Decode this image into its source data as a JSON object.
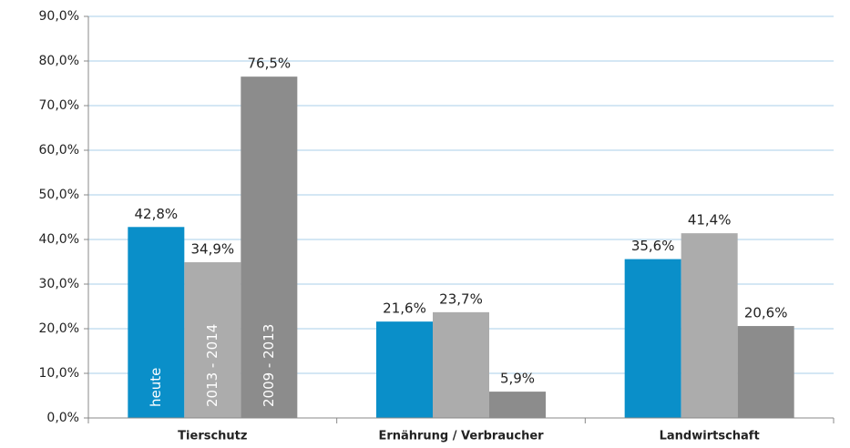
{
  "chart_data": {
    "type": "bar",
    "categories": [
      "Tierschutz",
      "Ernährung / Verbraucher",
      "Landwirtschaft"
    ],
    "series": [
      {
        "name": "heute",
        "color": "#0a8fc9",
        "values": [
          42.8,
          21.6,
          35.6
        ],
        "value_labels": [
          "42,8%",
          "21,6%",
          "35,6%"
        ]
      },
      {
        "name": "2013 - 2014",
        "color": "#acacac",
        "values": [
          34.9,
          23.7,
          41.4
        ],
        "value_labels": [
          "34,9%",
          "23,7%",
          "41,4%"
        ]
      },
      {
        "name": "2009 - 2013",
        "color": "#8c8c8c",
        "values": [
          76.5,
          5.9,
          20.6
        ],
        "value_labels": [
          "76,5%",
          "5,9%",
          "20,6%"
        ]
      }
    ],
    "ylim": [
      0,
      90
    ],
    "yticks": [
      {
        "value": 0,
        "label": "0,0%"
      },
      {
        "value": 10,
        "label": "10,0%"
      },
      {
        "value": 20,
        "label": "20,0%"
      },
      {
        "value": 30,
        "label": "30,0%"
      },
      {
        "value": 40,
        "label": "40,0%"
      },
      {
        "value": 50,
        "label": "50,0%"
      },
      {
        "value": 60,
        "label": "60,0%"
      },
      {
        "value": 70,
        "label": "70,0%"
      },
      {
        "value": 80,
        "label": "80,0%"
      },
      {
        "value": 90,
        "label": "90,0%"
      }
    ],
    "grid": true
  }
}
